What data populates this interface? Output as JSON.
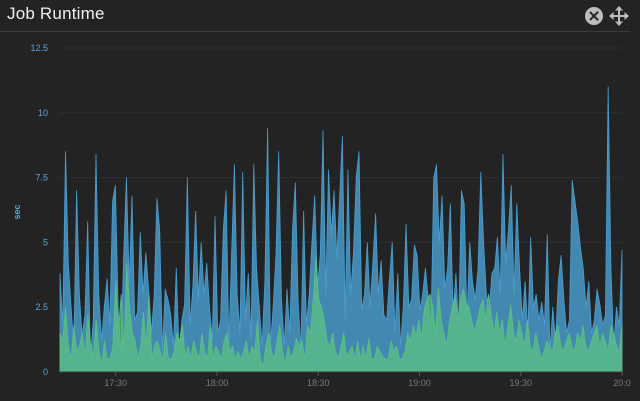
{
  "widget": {
    "title": "Job Runtime",
    "close_icon": "close-icon",
    "move_icon": "move-icon"
  },
  "chart_data": {
    "type": "area",
    "ylabel": "sec",
    "ylim": [
      0,
      12.5
    ],
    "yticks": [
      0,
      2.5,
      5,
      7.5,
      10,
      12.5
    ],
    "ytick_labels": [
      "0",
      "2.5",
      "5",
      "7.5",
      "10",
      "12.5"
    ],
    "xtick_labels": [
      "17:30",
      "18:00",
      "18:30",
      "19:00",
      "19:30",
      "20:0"
    ],
    "x_start_minutes": 1033.5,
    "x_end_minutes": 1200,
    "xtick_minutes": [
      1050,
      1080,
      1110,
      1140,
      1170,
      1200
    ],
    "grid": true,
    "colors": {
      "blue": "#4a9fcf",
      "green": "#5bbf84"
    },
    "series": [
      {
        "color": "blue",
        "values": [
          3.8,
          1.8,
          8.5,
          4.2,
          2.5,
          1.0,
          7.0,
          3.0,
          1.4,
          2.2,
          5.8,
          0.5,
          2.0,
          8.4,
          3.0,
          1.2,
          2.5,
          3.6,
          1.8,
          6.6,
          7.2,
          2.5,
          0.6,
          4.5,
          7.5,
          3.4,
          6.8,
          2.0,
          2.3,
          5.4,
          3.0,
          4.6,
          3.2,
          1.5,
          2.9,
          6.7,
          5.5,
          0.8,
          3.2,
          2.8,
          2.2,
          1.0,
          4.0,
          0.8,
          2.0,
          2.6,
          7.5,
          1.8,
          3.3,
          6.2,
          2.8,
          5.0,
          3.0,
          4.2,
          2.5,
          1.2,
          6.0,
          1.5,
          2.0,
          5.5,
          7.0,
          1.0,
          4.6,
          8.0,
          3.0,
          1.5,
          7.7,
          2.0,
          3.8,
          1.3,
          8.0,
          4.0,
          2.5,
          1.0,
          3.5,
          9.4,
          1.0,
          2.5,
          4.5,
          8.5,
          2.8,
          1.0,
          3.2,
          1.5,
          5.5,
          7.3,
          2.8,
          0.8,
          6.2,
          1.8,
          3.0,
          5.0,
          6.8,
          3.3,
          4.5,
          9.3,
          3.0,
          7.8,
          5.3,
          7.0,
          4.4,
          6.7,
          9.1,
          2.0,
          7.8,
          3.0,
          4.6,
          7.5,
          8.5,
          2.4,
          3.0,
          5.0,
          2.5,
          4.2,
          6.1,
          3.0,
          4.3,
          2.2,
          2.0,
          3.6,
          5.0,
          1.5,
          3.8,
          1.0,
          2.5,
          5.7,
          2.5,
          2.8,
          4.9,
          4.5,
          2.4,
          3.0,
          4.0,
          2.8,
          1.6,
          7.5,
          8.0,
          5.0,
          6.8,
          3.2,
          4.0,
          6.5,
          2.2,
          3.8,
          1.8,
          7.0,
          6.5,
          2.0,
          5.0,
          3.5,
          2.8,
          4.0,
          7.7,
          5.0,
          3.0,
          2.3,
          3.8,
          4.0,
          5.2,
          3.0,
          8.4,
          4.2,
          5.5,
          7.2,
          3.0,
          6.5,
          4.0,
          2.0,
          3.5,
          1.5,
          5.2,
          2.5,
          3.0,
          2.0,
          2.7,
          1.8,
          5.3,
          0.8,
          2.5,
          1.2,
          3.5,
          4.5,
          2.8,
          1.5,
          2.0,
          7.4,
          6.6,
          5.8,
          4.8,
          4.0,
          2.5,
          3.5,
          1.5,
          2.0,
          3.2,
          2.6,
          1.8,
          2.2,
          11.0,
          4.0,
          1.0,
          2.5,
          1.8,
          4.7
        ]
      },
      {
        "color": "green",
        "values": [
          1.5,
          1.2,
          2.5,
          1.0,
          0.5,
          1.8,
          0.8,
          1.0,
          1.5,
          0.6,
          2.2,
          1.1,
          0.6,
          2.0,
          0.8,
          0.3,
          1.2,
          0.5,
          0.5,
          1.0,
          3.5,
          1.6,
          3.0,
          0.8,
          4.2,
          2.5,
          1.5,
          1.2,
          0.5,
          1.0,
          2.3,
          1.0,
          3.0,
          0.5,
          1.0,
          1.2,
          0.8,
          0.5,
          1.5,
          0.5,
          0.5,
          0.8,
          1.5,
          1.2,
          1.8,
          0.6,
          1.0,
          0.5,
          1.2,
          0.8,
          0.5,
          1.5,
          0.8,
          0.5,
          1.8,
          0.5,
          1.0,
          0.8,
          0.5,
          1.2,
          1.5,
          0.8,
          1.0,
          0.5,
          0.8,
          0.5,
          0.8,
          1.2,
          0.5,
          1.0,
          0.8,
          2.0,
          0.5,
          0.2,
          1.0,
          1.5,
          0.8,
          0.5,
          1.2,
          1.8,
          0.8,
          0.3,
          1.0,
          0.5,
          0.8,
          1.3,
          1.0,
          1.2,
          0.5,
          1.8,
          1.5,
          2.8,
          4.4,
          2.8,
          2.5,
          2.0,
          1.2,
          1.0,
          1.5,
          0.8,
          0.5,
          1.0,
          1.5,
          0.6,
          0.8,
          1.0,
          0.5,
          1.2,
          0.5,
          1.0,
          0.5,
          1.3,
          0.5,
          0.5,
          1.0,
          0.8,
          0.6,
          0.5,
          0.5,
          1.2,
          0.8,
          1.0,
          0.5,
          0.5,
          0.8,
          1.5,
          1.2,
          1.8,
          1.4,
          2.0,
          1.3,
          2.5,
          2.8,
          3.0,
          2.5,
          1.5,
          3.2,
          2.0,
          1.5,
          1.0,
          2.0,
          2.5,
          3.0,
          2.0,
          2.8,
          3.2,
          2.6,
          2.5,
          2.0,
          1.5,
          2.0,
          2.5,
          2.8,
          2.0,
          3.0,
          2.2,
          1.5,
          2.3,
          1.5,
          2.0,
          1.0,
          1.8,
          2.6,
          1.5,
          1.2,
          2.0,
          1.5,
          1.0,
          2.0,
          1.0,
          0.8,
          1.5,
          1.0,
          0.5,
          0.8,
          1.2,
          1.0,
          0.8,
          1.5,
          1.8,
          1.0,
          0.8,
          1.2,
          1.5,
          1.0,
          0.8,
          1.5,
          1.2,
          1.8,
          1.0,
          0.8,
          1.2,
          1.5,
          1.8,
          1.0,
          1.5,
          1.2,
          0.8,
          1.8,
          1.5,
          1.0,
          0.8,
          1.8
        ]
      }
    ]
  }
}
